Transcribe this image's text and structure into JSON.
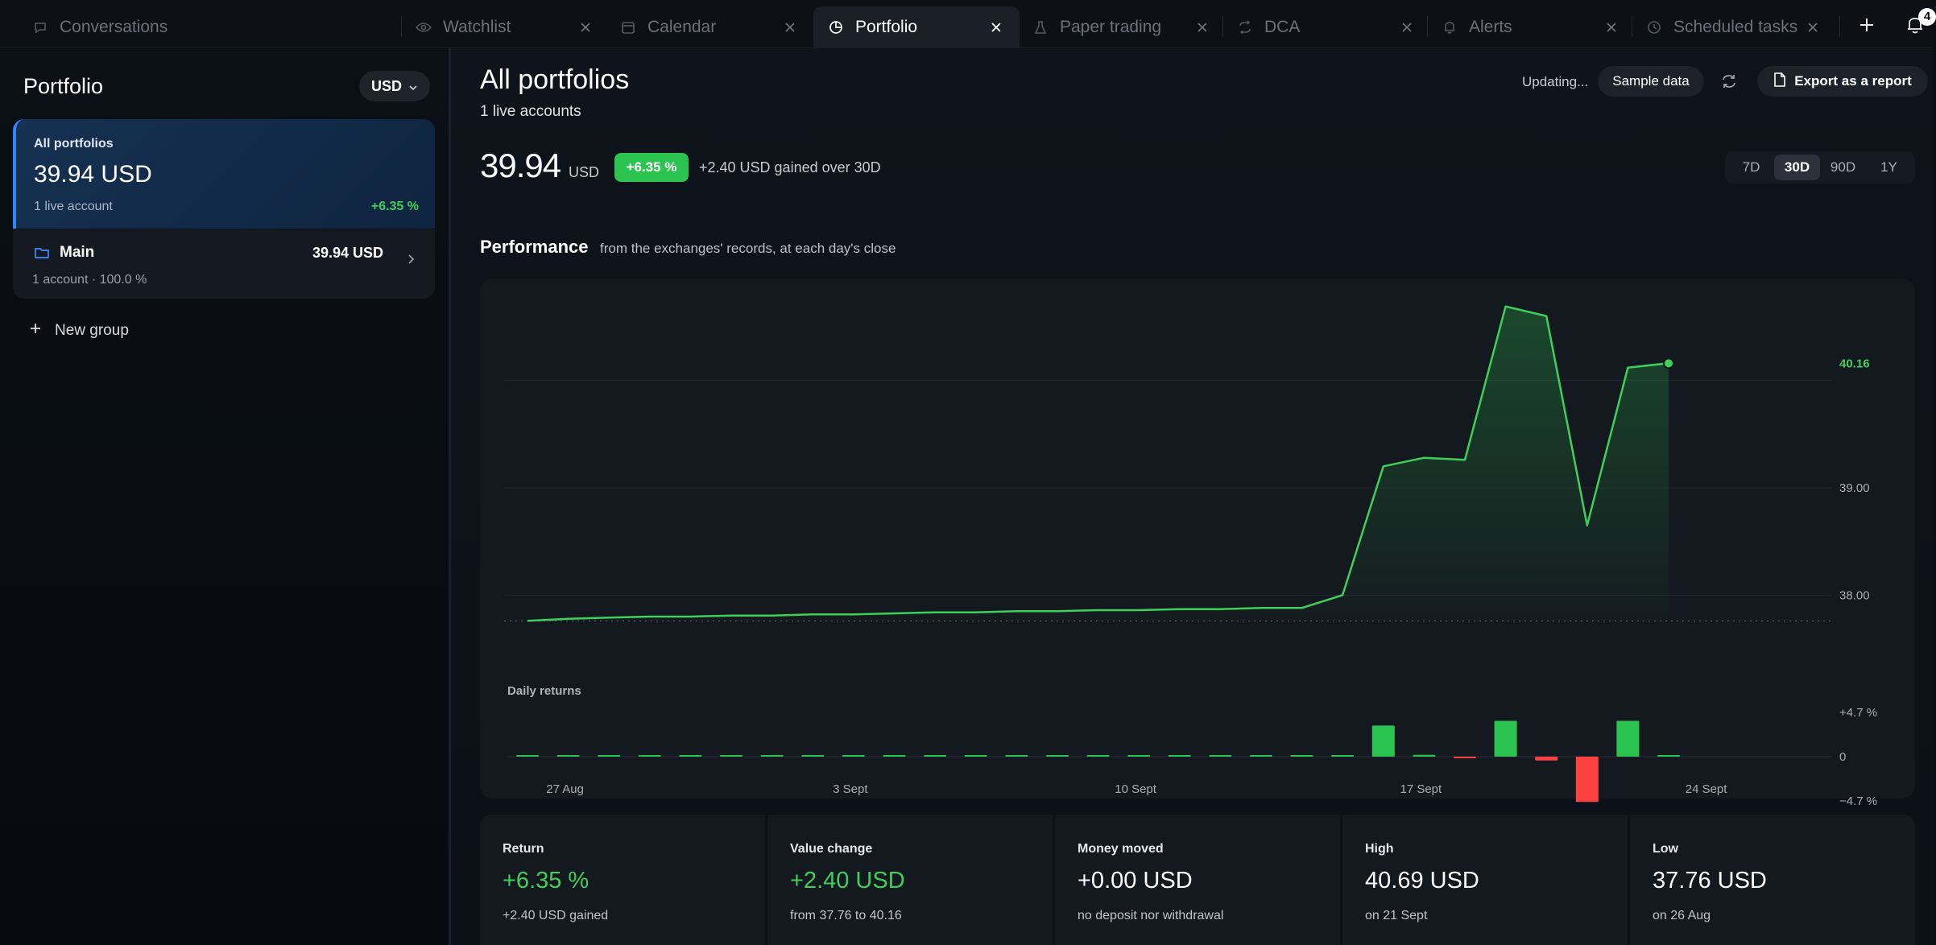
{
  "tabs": [
    {
      "label": "Conversations",
      "icon": "chat-bubble-icon",
      "active": false
    },
    {
      "label": "Watchlist",
      "icon": "eye-icon",
      "active": false
    },
    {
      "label": "Calendar",
      "icon": "calendar-icon",
      "active": false
    },
    {
      "label": "Portfolio",
      "icon": "pie-chart-icon",
      "active": true
    },
    {
      "label": "Paper trading",
      "icon": "flask-icon",
      "active": false
    },
    {
      "label": "DCA",
      "icon": "repeat-icon",
      "active": false
    },
    {
      "label": "Alerts",
      "icon": "bell-icon",
      "active": false
    },
    {
      "label": "Scheduled tasks",
      "icon": "clock-icon",
      "active": false
    }
  ],
  "notifications": {
    "count": "4"
  },
  "sidebar": {
    "title": "Portfolio",
    "currency": "USD",
    "all_portfolios": {
      "label": "All portfolios",
      "value": "39.94 USD",
      "sub": "1 live account",
      "change": "+6.35 %"
    },
    "groups": [
      {
        "name": "Main",
        "value": "39.94 USD",
        "sub": "1 account · 100.0 %"
      }
    ],
    "new_group_label": "New group"
  },
  "main": {
    "title": "All portfolios",
    "subtitle": "1 live accounts",
    "updating_text": "Updating...",
    "sample_data_label": "Sample data",
    "export_label": "Export as a report",
    "value": "39.94",
    "unit": "USD",
    "change_badge": "+6.35 %",
    "gained_text": "+2.40 USD gained over 30D",
    "ranges": [
      {
        "label": "7D",
        "active": false
      },
      {
        "label": "30D",
        "active": true
      },
      {
        "label": "90D",
        "active": false
      },
      {
        "label": "1Y",
        "active": false
      }
    ],
    "performance_title": "Performance",
    "performance_sub": "from the exchanges' records, at each day's close",
    "stats": [
      {
        "label": "Return",
        "value": "+6.35 %",
        "sub": "+2.40 USD gained",
        "green": true
      },
      {
        "label": "Value change",
        "value": "+2.40 USD",
        "sub": "from 37.76 to 40.16",
        "green": true
      },
      {
        "label": "Money moved",
        "value": "+0.00 USD",
        "sub": "no deposit nor withdrawal",
        "green": false
      },
      {
        "label": "High",
        "value": "40.69 USD",
        "sub": "on 21 Sept",
        "green": false
      },
      {
        "label": "Low",
        "value": "37.76 USD",
        "sub": "on 26 Aug",
        "green": false
      }
    ]
  },
  "colors": {
    "accent_green": "#3fd05a",
    "accent_red": "#ff4040",
    "accent_blue": "#2f86ff"
  },
  "chart_data": [
    {
      "type": "area",
      "ylim": [
        37.5,
        40.8
      ],
      "y_ticks": [
        "38.00",
        "39.00"
      ],
      "last_value_label": "40.16",
      "x_ticks": [
        "27 Aug",
        "3 Sept",
        "10 Sept",
        "17 Sept",
        "24 Sept"
      ],
      "values": [
        37.76,
        37.78,
        37.79,
        37.8,
        37.8,
        37.81,
        37.81,
        37.82,
        37.82,
        37.83,
        37.84,
        37.84,
        37.85,
        37.85,
        37.86,
        37.86,
        37.87,
        37.87,
        37.88,
        37.88,
        38.0,
        39.2,
        39.28,
        39.26,
        40.69,
        40.6,
        38.65,
        40.12,
        40.16
      ]
    },
    {
      "type": "bar",
      "title": "Daily returns",
      "ylim": [
        -4.7,
        4.7
      ],
      "y_ticks": [
        "+4.7 %",
        "0",
        "−4.7 %"
      ],
      "values": [
        0.05,
        0.05,
        0.05,
        0.05,
        0.05,
        0.05,
        0.05,
        0.05,
        0.05,
        0.05,
        0.05,
        0.05,
        0.05,
        0.05,
        0.05,
        0.05,
        0.05,
        0.05,
        0.05,
        0.05,
        0.1,
        3.3,
        0.2,
        -0.15,
        3.8,
        -0.4,
        -4.8,
        3.8,
        0.1
      ]
    }
  ]
}
